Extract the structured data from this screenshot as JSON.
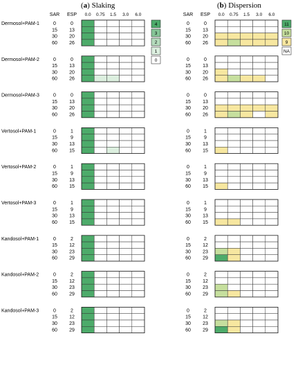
{
  "panels": [
    {
      "paren_left": "(",
      "letter": "a",
      "paren_right": ")",
      "title": "Slaking"
    },
    {
      "paren_left": "(",
      "letter": "b",
      "paren_right": ")",
      "title": "Dispersion"
    }
  ],
  "headers": {
    "sar": "SAR",
    "esp": "ESP"
  },
  "ec_columns": [
    "0.0",
    "0.75",
    "1.5",
    "3.0",
    "6.0"
  ],
  "legends": {
    "slaking": {
      "labels": [
        "4",
        "3",
        "2",
        "1",
        "0"
      ],
      "colors": [
        "#4dab6a",
        "#86c597",
        "#b4dbbc",
        "#dcefdf",
        "#ffffff"
      ]
    },
    "dispersion": {
      "labels": [
        "11",
        "10",
        "9",
        "NA"
      ],
      "colors": [
        "#4dab6a",
        "#c6df9e",
        "#f7e7a0",
        "#ffffff"
      ]
    }
  },
  "chart_data": {
    "type": "heatmap",
    "panels": [
      "Slaking",
      "Dispersion"
    ],
    "xlabel": "",
    "columns": [
      "0.0",
      "0.75",
      "1.5",
      "3.0",
      "6.0"
    ],
    "groups": [
      {
        "name": "Dermosol+PAM-1",
        "rows": [
          {
            "sar": "0",
            "esp": "0"
          },
          {
            "sar": "15",
            "esp": "13"
          },
          {
            "sar": "30",
            "esp": "20"
          },
          {
            "sar": "60",
            "esp": "26"
          }
        ],
        "slaking": [
          [
            4,
            0,
            0,
            0,
            0
          ],
          [
            4,
            0,
            0,
            0,
            0
          ],
          [
            4,
            0,
            0,
            0,
            0
          ],
          [
            4,
            0,
            0,
            0,
            0
          ]
        ],
        "dispersion": [
          [
            "NA",
            "NA",
            "NA",
            "NA",
            "NA"
          ],
          [
            "NA",
            "NA",
            "NA",
            "NA",
            "NA"
          ],
          [
            9,
            9,
            9,
            9,
            9
          ],
          [
            9,
            10,
            9,
            9,
            9
          ]
        ]
      },
      {
        "name": "Dermosol+PAM-2",
        "rows": [
          {
            "sar": "0",
            "esp": "0"
          },
          {
            "sar": "15",
            "esp": "13"
          },
          {
            "sar": "30",
            "esp": "20"
          },
          {
            "sar": "60",
            "esp": "26"
          }
        ],
        "slaking": [
          [
            4,
            0,
            0,
            0,
            0
          ],
          [
            4,
            0,
            0,
            0,
            0
          ],
          [
            4,
            0,
            0,
            0,
            0
          ],
          [
            4,
            1,
            1,
            0,
            0
          ]
        ],
        "dispersion": [
          [
            "NA",
            "NA",
            "NA",
            "NA",
            "NA"
          ],
          [
            "NA",
            "NA",
            "NA",
            "NA",
            "NA"
          ],
          [
            9,
            "NA",
            "NA",
            "NA",
            "NA"
          ],
          [
            9,
            10,
            9,
            9,
            "NA"
          ]
        ]
      },
      {
        "name": "Dermosol+PAM-3",
        "rows": [
          {
            "sar": "0",
            "esp": "0"
          },
          {
            "sar": "15",
            "esp": "13"
          },
          {
            "sar": "30",
            "esp": "20"
          },
          {
            "sar": "60",
            "esp": "26"
          }
        ],
        "slaking": [
          [
            4,
            0,
            0,
            0,
            0
          ],
          [
            4,
            0,
            0,
            0,
            0
          ],
          [
            4,
            0,
            0,
            0,
            0
          ],
          [
            4,
            0,
            0,
            0,
            0
          ]
        ],
        "dispersion": [
          [
            "NA",
            "NA",
            "NA",
            "NA",
            "NA"
          ],
          [
            "NA",
            "NA",
            "NA",
            "NA",
            "NA"
          ],
          [
            9,
            9,
            9,
            9,
            9
          ],
          [
            9,
            10,
            9,
            "NA",
            9
          ]
        ]
      },
      {
        "name": "Vertosol+PAM-1",
        "rows": [
          {
            "sar": "0",
            "esp": "1"
          },
          {
            "sar": "15",
            "esp": "9"
          },
          {
            "sar": "30",
            "esp": "13"
          },
          {
            "sar": "60",
            "esp": "15"
          }
        ],
        "slaking": [
          [
            4,
            0,
            0,
            0,
            0
          ],
          [
            4,
            0,
            0,
            0,
            0
          ],
          [
            4,
            0,
            0,
            0,
            0
          ],
          [
            4,
            0,
            1,
            0,
            0
          ]
        ],
        "dispersion": [
          [
            "NA",
            "NA",
            "NA",
            "NA",
            "NA"
          ],
          [
            "NA",
            "NA",
            "NA",
            "NA",
            "NA"
          ],
          [
            "NA",
            "NA",
            "NA",
            "NA",
            "NA"
          ],
          [
            9,
            "NA",
            "NA",
            "NA",
            "NA"
          ]
        ]
      },
      {
        "name": "Vertosol+PAM-2",
        "rows": [
          {
            "sar": "0",
            "esp": "1"
          },
          {
            "sar": "15",
            "esp": "9"
          },
          {
            "sar": "30",
            "esp": "13"
          },
          {
            "sar": "60",
            "esp": "15"
          }
        ],
        "slaking": [
          [
            4,
            0,
            0,
            0,
            0
          ],
          [
            4,
            0,
            0,
            0,
            0
          ],
          [
            4,
            0,
            0,
            0,
            0
          ],
          [
            4,
            0,
            0,
            0,
            0
          ]
        ],
        "dispersion": [
          [
            "NA",
            "NA",
            "NA",
            "NA",
            "NA"
          ],
          [
            "NA",
            "NA",
            "NA",
            "NA",
            "NA"
          ],
          [
            "NA",
            "NA",
            "NA",
            "NA",
            "NA"
          ],
          [
            9,
            "NA",
            "NA",
            "NA",
            "NA"
          ]
        ]
      },
      {
        "name": "Vertosol+PAM-3",
        "rows": [
          {
            "sar": "0",
            "esp": "1"
          },
          {
            "sar": "15",
            "esp": "9"
          },
          {
            "sar": "30",
            "esp": "13"
          },
          {
            "sar": "60",
            "esp": "15"
          }
        ],
        "slaking": [
          [
            4,
            0,
            0,
            0,
            0
          ],
          [
            4,
            0,
            0,
            0,
            0
          ],
          [
            4,
            0,
            0,
            0,
            0
          ],
          [
            4,
            0,
            0,
            0,
            0
          ]
        ],
        "dispersion": [
          [
            "NA",
            "NA",
            "NA",
            "NA",
            "NA"
          ],
          [
            "NA",
            "NA",
            "NA",
            "NA",
            "NA"
          ],
          [
            "NA",
            "NA",
            "NA",
            "NA",
            "NA"
          ],
          [
            9,
            9,
            "NA",
            "NA",
            "NA"
          ]
        ]
      },
      {
        "name": "Kandosol+PAM-1",
        "rows": [
          {
            "sar": "0",
            "esp": "2"
          },
          {
            "sar": "15",
            "esp": "12"
          },
          {
            "sar": "30",
            "esp": "23"
          },
          {
            "sar": "60",
            "esp": "29"
          }
        ],
        "slaking": [
          [
            4,
            0,
            0,
            0,
            0
          ],
          [
            4,
            0,
            0,
            0,
            0
          ],
          [
            4,
            0,
            0,
            0,
            0
          ],
          [
            4,
            0,
            0,
            0,
            0
          ]
        ],
        "dispersion": [
          [
            "NA",
            "NA",
            "NA",
            "NA",
            "NA"
          ],
          [
            "NA",
            "NA",
            "NA",
            "NA",
            "NA"
          ],
          [
            10,
            9,
            "NA",
            "NA",
            "NA"
          ],
          [
            11,
            9,
            "NA",
            "NA",
            "NA"
          ]
        ]
      },
      {
        "name": "Kandosol+PAM-2",
        "rows": [
          {
            "sar": "0",
            "esp": "2"
          },
          {
            "sar": "15",
            "esp": "12"
          },
          {
            "sar": "30",
            "esp": "23"
          },
          {
            "sar": "60",
            "esp": "29"
          }
        ],
        "slaking": [
          [
            4,
            0,
            0,
            0,
            0
          ],
          [
            4,
            0,
            0,
            0,
            0
          ],
          [
            4,
            0,
            0,
            0,
            0
          ],
          [
            4,
            0,
            0,
            0,
            0
          ]
        ],
        "dispersion": [
          [
            "NA",
            "NA",
            "NA",
            "NA",
            "NA"
          ],
          [
            "NA",
            "NA",
            "NA",
            "NA",
            "NA"
          ],
          [
            10,
            "NA",
            "NA",
            "NA",
            "NA"
          ],
          [
            10,
            9,
            "NA",
            "NA",
            "NA"
          ]
        ]
      },
      {
        "name": "Kandosol+PAM-3",
        "rows": [
          {
            "sar": "0",
            "esp": "2"
          },
          {
            "sar": "15",
            "esp": "12"
          },
          {
            "sar": "30",
            "esp": "23"
          },
          {
            "sar": "60",
            "esp": "29"
          }
        ],
        "slaking": [
          [
            4,
            0,
            0,
            0,
            0
          ],
          [
            4,
            0,
            0,
            0,
            0
          ],
          [
            4,
            0,
            0,
            0,
            0
          ],
          [
            4,
            0,
            0,
            0,
            0
          ]
        ],
        "dispersion": [
          [
            "NA",
            "NA",
            "NA",
            "NA",
            "NA"
          ],
          [
            "NA",
            "NA",
            "NA",
            "NA",
            "NA"
          ],
          [
            10,
            9,
            "NA",
            "NA",
            "NA"
          ],
          [
            11,
            9,
            "NA",
            "NA",
            "NA"
          ]
        ]
      }
    ]
  }
}
